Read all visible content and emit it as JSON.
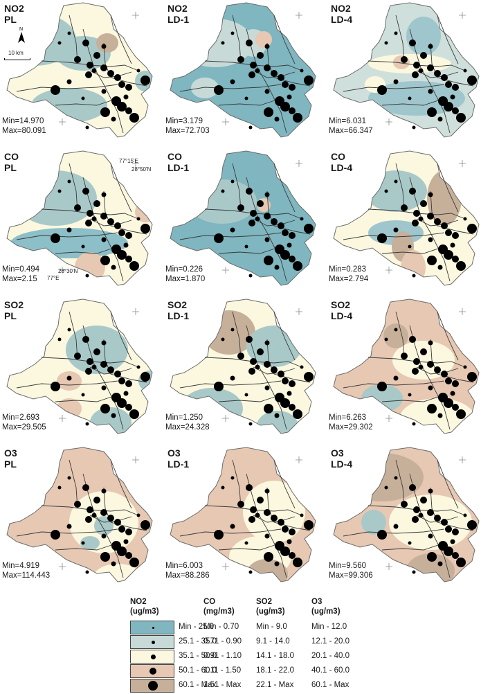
{
  "panels": [
    {
      "pollutant": "NO2",
      "scenario": "PL",
      "min": "Min=14.970",
      "max": "Max=80.091",
      "base": "#fbf8df",
      "blobs": [
        [
          "#a9c9c9",
          50,
          55,
          60,
          38
        ],
        [
          "#a9c9c9",
          120,
          75,
          40,
          25
        ],
        [
          "#a9c9c9",
          100,
          150,
          55,
          25
        ],
        [
          "#c7b09a",
          155,
          60,
          16,
          14
        ],
        [
          "#a9c9c9",
          210,
          115,
          15,
          15
        ]
      ]
    },
    {
      "pollutant": "NO2",
      "scenario": "LD-1",
      "min": "Min=3.179",
      "max": "Max=72.703",
      "base": "#7fb6c0",
      "blobs": [
        [
          "#c7dad7",
          75,
          60,
          55,
          35
        ],
        [
          "#c7dad7",
          130,
          60,
          20,
          20
        ],
        [
          "#e6c8b3",
          145,
          55,
          12,
          12
        ],
        [
          "#c7dad7",
          60,
          125,
          20,
          15
        ]
      ]
    },
    {
      "pollutant": "NO2",
      "scenario": "LD-4",
      "min": "Min=6.031",
      "max": "Max=66.347",
      "base": "#cfe0dc",
      "blobs": [
        [
          "#9fc6cc",
          140,
          50,
          25,
          28
        ],
        [
          "#fbf8df",
          120,
          90,
          60,
          14
        ],
        [
          "#e6c8b3",
          108,
          88,
          12,
          10
        ],
        [
          "#9fc6cc",
          130,
          140,
          70,
          25
        ],
        [
          "#fbf8df",
          70,
          120,
          15,
          12
        ]
      ]
    },
    {
      "pollutant": "CO",
      "scenario": "PL",
      "min": "Min=0.494",
      "max": "Max=2.15",
      "base": "#fbf8df",
      "blobs": [
        [
          "#a9c9c9",
          80,
          70,
          60,
          40
        ],
        [
          "#8cbfc8",
          100,
          135,
          85,
          22
        ],
        [
          "#e6c8b3",
          130,
          170,
          22,
          22
        ],
        [
          "#e6c8b3",
          210,
          90,
          15,
          15
        ]
      ]
    },
    {
      "pollutant": "CO",
      "scenario": "LD-1",
      "min": "Min=0.226",
      "max": "Max=1.870",
      "base": "#7fb6c0",
      "blobs": [
        [
          "#a9c9c9",
          85,
          75,
          50,
          32
        ],
        [
          "#e6c8b3",
          145,
          80,
          10,
          10
        ]
      ]
    },
    {
      "pollutant": "CO",
      "scenario": "LD-4",
      "min": "Min=0.283",
      "max": "Max=2.794",
      "base": "#fbf8df",
      "blobs": [
        [
          "#a9c9c9",
          100,
          60,
          45,
          30
        ],
        [
          "#9fc6cc",
          100,
          120,
          40,
          18
        ],
        [
          "#c7b09a",
          110,
          140,
          16,
          22
        ],
        [
          "#c7b09a",
          170,
          70,
          25,
          40
        ],
        [
          "#e6c8b3",
          125,
          170,
          18,
          25
        ]
      ]
    },
    {
      "pollutant": "SO2",
      "scenario": "PL",
      "min": "Min=2.693",
      "max": "Max=29.505",
      "base": "#fbf8df",
      "blobs": [
        [
          "#a9c9c9",
          140,
          75,
          45,
          35
        ],
        [
          "#e6c8b3",
          100,
          120,
          18,
          14
        ],
        [
          "#e6c8b3",
          100,
          160,
          18,
          15
        ],
        [
          "#a9c9c9",
          160,
          180,
          30,
          22
        ],
        [
          "#a9c9c9",
          215,
          120,
          15,
          15
        ]
      ]
    },
    {
      "pollutant": "SO2",
      "scenario": "LD-1",
      "min": "Min=1.250",
      "max": "Max=24.328",
      "base": "#fbf8df",
      "blobs": [
        [
          "#c7b09a",
          95,
          50,
          38,
          32
        ],
        [
          "#a9c9c9",
          160,
          70,
          40,
          30
        ],
        [
          "#a9c9c9",
          70,
          160,
          45,
          30
        ],
        [
          "#a9c9c9",
          165,
          185,
          30,
          22
        ]
      ]
    },
    {
      "pollutant": "SO2",
      "scenario": "LD-4",
      "min": "Min=6.263",
      "max": "Max=29.302",
      "base": "#e6c8b3",
      "blobs": [
        [
          "#fbf8df",
          140,
          90,
          45,
          28
        ],
        [
          "#fbf8df",
          160,
          175,
          55,
          30
        ],
        [
          "#a9c9c9",
          80,
          145,
          30,
          20
        ],
        [
          "#c7b09a",
          100,
          55,
          18,
          18
        ]
      ]
    },
    {
      "pollutant": "O3",
      "scenario": "PL",
      "min": "Min=4.919",
      "max": "Max=114.443",
      "base": "#e6c8b3",
      "blobs": [
        [
          "#fbf8df",
          150,
          110,
          50,
          45
        ],
        [
          "#a9c9c9",
          150,
          115,
          14,
          14
        ],
        [
          "#a9c9c9",
          130,
          140,
          14,
          10
        ],
        [
          "#fbf8df",
          170,
          190,
          35,
          20
        ]
      ]
    },
    {
      "pollutant": "O3",
      "scenario": "LD-1",
      "min": "Min=6.003",
      "max": "Max=88.286",
      "base": "#e6c8b3",
      "blobs": [
        [
          "#fbf8df",
          160,
          95,
          45,
          45
        ],
        [
          "#fbf8df",
          140,
          160,
          45,
          30
        ],
        [
          "#c7b09a",
          150,
          185,
          30,
          22
        ]
      ]
    },
    {
      "pollutant": "O3",
      "scenario": "LD-4",
      "min": "Min=9.560",
      "max": "Max=99.306",
      "base": "#e6c8b3",
      "blobs": [
        [
          "#c7b09a",
          80,
          45,
          60,
          35
        ],
        [
          "#fbf8df",
          150,
          110,
          60,
          40
        ],
        [
          "#a9c9c9",
          68,
          110,
          18,
          18
        ],
        [
          "#c7b09a",
          150,
          180,
          35,
          25
        ]
      ]
    }
  ],
  "annotations": {
    "north": "N",
    "scale": "10 km",
    "lon_e": "77°15'E",
    "lat_n": "28°50'N",
    "lat_s": "28°30'N",
    "lon_w": "77°E"
  },
  "legend": {
    "headers": [
      {
        "pollutant": "NO2",
        "unit": "(ug/m3)"
      },
      {
        "pollutant": "CO",
        "unit": "(mg/m3)"
      },
      {
        "pollutant": "SO2",
        "unit": "(ug/m3)"
      },
      {
        "pollutant": "O3",
        "unit": "(ug/m3)"
      }
    ],
    "rows": [
      {
        "color": "#7fb6c0",
        "values": [
          "Min - 25.0",
          "Min - 0.70",
          "Min - 9.0",
          "Min - 12.0"
        ]
      },
      {
        "color": "#c7dad7",
        "values": [
          "25.1 - 35.0",
          "0.71 - 0.90",
          "9.1 - 14.0",
          "12.1 - 20.0"
        ]
      },
      {
        "color": "#fbf8df",
        "values": [
          "35.1 - 50.0",
          "0.91 - 1.10",
          "14.1 - 18.0",
          "20.1 - 40.0"
        ]
      },
      {
        "color": "#e6c8b3",
        "values": [
          "50.1 - 60.0",
          "1.11 - 1.50",
          "18.1 - 22.0",
          "40.1 - 60.0"
        ]
      },
      {
        "color": "#c7b09a",
        "values": [
          "60.1 - Max",
          "1.51 - Max",
          "22.1 - Max",
          "60.1 - Max"
        ]
      }
    ]
  }
}
